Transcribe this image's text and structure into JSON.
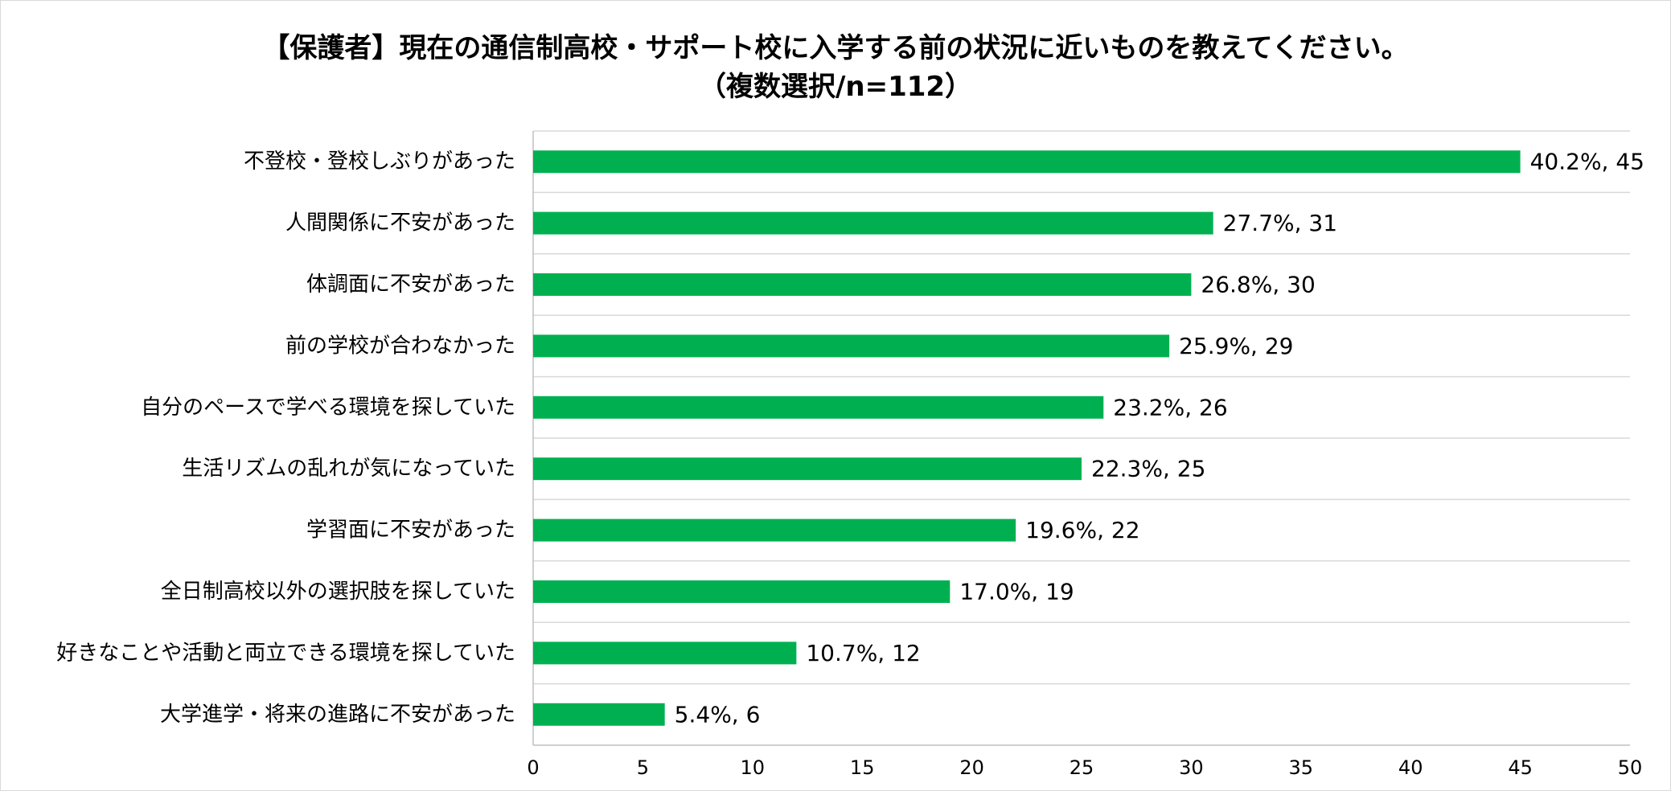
{
  "chart_data": {
    "type": "bar",
    "orientation": "horizontal",
    "title_lines": [
      "【保護者】現在の通信制高校・サポート校に入学する前の状況に近いものを教えてください。",
      "（複数選択/n=112）"
    ],
    "categories": [
      "不登校・登校しぶりがあった",
      "人間関係に不安があった",
      "体調面に不安があった",
      "前の学校が合わなかった",
      "自分のペースで学べる環境を探していた",
      "生活リズムの乱れが気になっていた",
      "学習面に不安があった",
      "全日制高校以外の選択肢を探していた",
      "好きなことや活動と両立できる環境を探していた",
      "大学進学・将来の進路に不安があった"
    ],
    "values": [
      45,
      31,
      30,
      29,
      26,
      25,
      22,
      19,
      12,
      6
    ],
    "data_labels": [
      "40.2%, 45",
      "27.7%, 31",
      "26.8%, 30",
      "25.9%, 29",
      "23.2%, 26",
      "22.3%, 25",
      "19.6%, 22",
      "17.0%, 19",
      "10.7%, 12",
      "5.4%, 6"
    ],
    "xlim": [
      0,
      50
    ],
    "x_ticks": [
      0,
      5,
      10,
      15,
      20,
      25,
      30,
      35,
      40,
      45,
      50
    ],
    "grid": "horizontal separators between categories",
    "legend": "none",
    "bar_color": "#00b050",
    "grid_color": "#d9d9d9",
    "axis_color": "#bfbfbf"
  }
}
